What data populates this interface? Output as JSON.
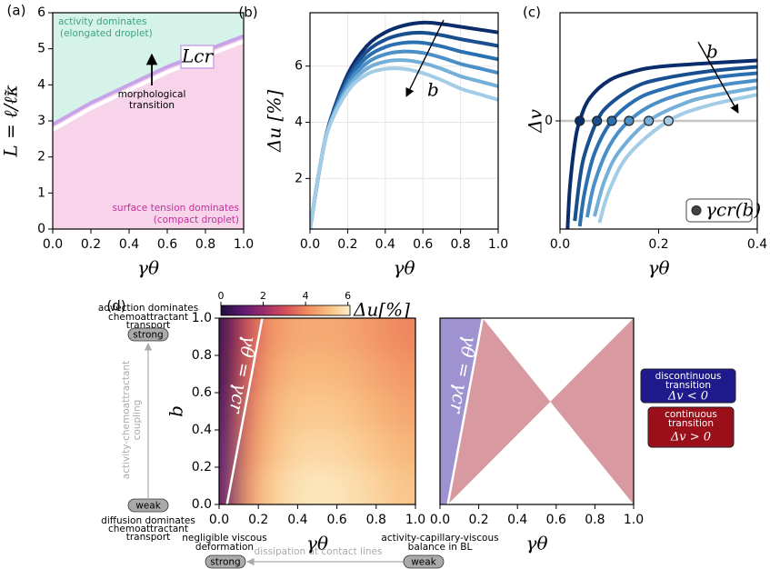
{
  "chart_data": [
    {
      "type": "area",
      "panel": "(a)",
      "xlabel": "γθ",
      "ylabel": "L = ℓ/ℓ̃κ",
      "xlim": [
        0,
        1
      ],
      "ylim": [
        0,
        6
      ],
      "xticks": [
        {
          "value": 0,
          "label": "0.0"
        },
        {
          "value": 0.2,
          "label": "0.2"
        },
        {
          "value": 0.4,
          "label": "0.4"
        },
        {
          "value": 0.6,
          "label": "0.6"
        },
        {
          "value": 0.8,
          "label": "0.8"
        },
        {
          "value": 1,
          "label": "1.0"
        }
      ],
      "yticks": [
        0,
        1,
        2,
        3,
        4,
        5,
        6
      ],
      "x": [
        0,
        0.1,
        0.2,
        0.3,
        0.4,
        0.5,
        0.6,
        0.7,
        0.8,
        0.9,
        1.0
      ],
      "series": [
        {
          "name": "Lcr",
          "color": "#c7a4e8",
          "values": [
            2.9,
            3.2,
            3.5,
            3.75,
            4.0,
            4.25,
            4.5,
            4.7,
            4.95,
            5.15,
            5.35
          ]
        }
      ],
      "fill_above": "#d6f3e9",
      "fill_below": "#f8d4eb",
      "annotations": [
        "activity dominates",
        "(elongated droplet)",
        "morphological",
        "transition",
        "surface tension dominates",
        "(compact droplet)"
      ]
    },
    {
      "type": "line",
      "panel": "(b)",
      "xlabel": "γθ",
      "ylabel": "Δu [%]",
      "xlim": [
        0,
        1
      ],
      "ylim": [
        0.2,
        7.9
      ],
      "grid": true,
      "xticks": [
        {
          "value": 0,
          "label": "0.0"
        },
        {
          "value": 0.2,
          "label": "0.2"
        },
        {
          "value": 0.4,
          "label": "0.4"
        },
        {
          "value": 0.6,
          "label": "0.6"
        },
        {
          "value": 0.8,
          "label": "0.8"
        },
        {
          "value": 1,
          "label": "1.0"
        }
      ],
      "yticks": [
        2,
        4,
        6
      ],
      "x": [
        0,
        0.05,
        0.1,
        0.2,
        0.3,
        0.4,
        0.5,
        0.6,
        0.7,
        0.8,
        0.9,
        1.0
      ],
      "series": [
        {
          "color": "#0b2d6b",
          "values": [
            0.2,
            2.3,
            3.9,
            5.7,
            6.7,
            7.2,
            7.45,
            7.55,
            7.5,
            7.4,
            7.3,
            7.2
          ]
        },
        {
          "color": "#1a4f8f",
          "values": [
            0.2,
            2.3,
            3.88,
            5.58,
            6.5,
            6.94,
            7.14,
            7.19,
            7.1,
            6.96,
            6.84,
            6.72
          ]
        },
        {
          "color": "#2a6fb0",
          "values": [
            0.2,
            2.3,
            3.86,
            5.46,
            6.3,
            6.68,
            6.83,
            6.83,
            6.7,
            6.52,
            6.38,
            6.24
          ]
        },
        {
          "color": "#4a8fc8",
          "values": [
            0.2,
            2.3,
            3.84,
            5.34,
            6.1,
            6.42,
            6.52,
            6.47,
            6.3,
            6.08,
            5.92,
            5.76
          ]
        },
        {
          "color": "#74afd9",
          "values": [
            0.2,
            2.3,
            3.82,
            5.22,
            5.9,
            6.16,
            6.21,
            6.11,
            5.9,
            5.64,
            5.46,
            5.28
          ]
        },
        {
          "color": "#a3cce6",
          "values": [
            0.2,
            2.3,
            3.8,
            5.1,
            5.7,
            5.9,
            5.9,
            5.75,
            5.5,
            5.2,
            5.0,
            4.8
          ]
        }
      ],
      "annotations": [
        "b"
      ]
    },
    {
      "type": "line",
      "panel": "(c)",
      "xlabel": "γθ",
      "ylabel": "Δv",
      "xlim": [
        0,
        0.4
      ],
      "ylim": [
        -1.2,
        1.2
      ],
      "grid": "y",
      "xticks": [
        {
          "value": 0,
          "label": "0.0"
        },
        {
          "value": 0.2,
          "label": "0.2"
        },
        {
          "value": 0.4,
          "label": "0.4"
        }
      ],
      "yticks": [
        0
      ],
      "series": [
        {
          "color": "#0b2d6b",
          "x": [
            0.015,
            0.02,
            0.03,
            0.04,
            0.06,
            0.1,
            0.15,
            0.2,
            0.3,
            0.4
          ],
          "values": [
            -1.24,
            -0.74,
            -0.25,
            0,
            0.25,
            0.45,
            0.55,
            0.6,
            0.64,
            0.67
          ]
        },
        {
          "color": "#1a4f8f",
          "x": [
            0.03,
            0.04,
            0.05,
            0.075,
            0.1,
            0.15,
            0.2,
            0.3,
            0.4
          ],
          "values": [
            -1.11,
            -0.65,
            -0.37,
            0,
            0.18,
            0.37,
            0.46,
            0.55,
            0.6
          ]
        },
        {
          "color": "#2a6fb0",
          "x": [
            0.04,
            0.05,
            0.07,
            0.105,
            0.15,
            0.2,
            0.3,
            0.4
          ],
          "values": [
            -1.17,
            -0.79,
            -0.36,
            0,
            0.22,
            0.34,
            0.47,
            0.53
          ]
        },
        {
          "color": "#4a8fc8",
          "x": [
            0.055,
            0.07,
            0.1,
            0.14,
            0.2,
            0.3,
            0.4
          ],
          "values": [
            -1.07,
            -0.69,
            -0.28,
            0,
            0.21,
            0.37,
            0.45
          ]
        },
        {
          "color": "#74afd9",
          "x": [
            0.07,
            0.09,
            0.12,
            0.18,
            0.25,
            0.3,
            0.4
          ],
          "values": [
            -1.06,
            -0.67,
            -0.34,
            0,
            0.19,
            0.27,
            0.37
          ]
        },
        {
          "color": "#a3cce6",
          "x": [
            0.08,
            0.1,
            0.14,
            0.22,
            0.3,
            0.4
          ],
          "values": [
            -1.13,
            -0.77,
            -0.37,
            0,
            0.17,
            0.29
          ]
        }
      ],
      "markers": {
        "name": "γcr(b)",
        "x": [
          0.04,
          0.075,
          0.105,
          0.14,
          0.18,
          0.22
        ],
        "values": [
          0,
          0,
          0,
          0,
          0,
          0
        ]
      },
      "annotations": [
        "b"
      ]
    },
    {
      "type": "heatmap",
      "panel": "(d)",
      "xlabel": "γθ",
      "ylabel": "b",
      "xlim": [
        0,
        1
      ],
      "ylim": [
        0,
        1
      ],
      "xticks": [
        {
          "value": 0,
          "label": "0.0"
        },
        {
          "value": 0.2,
          "label": "0.2"
        },
        {
          "value": 0.4,
          "label": "0.4"
        },
        {
          "value": 0.6,
          "label": "0.6"
        },
        {
          "value": 0.8,
          "label": "0.8"
        },
        {
          "value": 1,
          "label": "1.0"
        }
      ],
      "yticks": [
        {
          "value": 0,
          "label": "0.0"
        },
        {
          "value": 0.2,
          "label": "0.2"
        },
        {
          "value": 0.4,
          "label": "0.4"
        },
        {
          "value": 0.6,
          "label": "0.6"
        },
        {
          "value": 0.8,
          "label": "0.8"
        },
        {
          "value": 1,
          "label": "1.0"
        }
      ],
      "x": [
        0.05,
        0.15,
        0.25,
        0.35,
        0.45,
        0.55,
        0.65,
        0.75,
        0.85,
        0.95
      ],
      "y": [
        0.1,
        0.3,
        0.5,
        0.7,
        0.9
      ],
      "values": [
        [
          1.2,
          4.3,
          5.3,
          5.7,
          5.9,
          5.9,
          5.8,
          5.6,
          5.4,
          5.2
        ],
        [
          1.0,
          4.0,
          5.0,
          5.4,
          5.6,
          5.6,
          5.5,
          5.3,
          5.1,
          4.9
        ],
        [
          0.8,
          3.7,
          4.8,
          5.2,
          5.3,
          5.3,
          5.2,
          5.0,
          4.8,
          4.6
        ],
        [
          0.6,
          3.3,
          4.5,
          4.9,
          5.0,
          5.0,
          4.9,
          4.7,
          4.5,
          4.3
        ],
        [
          0.5,
          3.0,
          4.2,
          4.6,
          4.7,
          4.7,
          4.6,
          4.4,
          4.2,
          4.0
        ]
      ],
      "clim": [
        0,
        6.1
      ],
      "colorbar_ticks": [
        0,
        2,
        4,
        6
      ],
      "colorbar_label": "Δu[%]",
      "colormap": [
        "#1f0c3b",
        "#5b1a6e",
        "#9b2d6c",
        "#d54d5a",
        "#f08a5e",
        "#f9be80",
        "#fdf0c9"
      ],
      "boundary": {
        "name": "γθ = γcr",
        "color": "#ffffff",
        "x": [
          0.04,
          0.22
        ],
        "values": [
          0,
          1
        ]
      },
      "annotations": [
        "advection dominates",
        "chemoattractant",
        "transport",
        "strong",
        "activity-chemoattractant",
        "coupling",
        "weak",
        "diffusion dominates",
        "chemoattractant",
        "transport",
        "negligible viscous",
        "deformation",
        "strong",
        "dissipation at contact lines",
        "weak",
        "activity-capillary-viscous",
        "balance in BL"
      ]
    },
    {
      "type": "region",
      "xlabel": "γθ",
      "xlim": [
        0,
        1
      ],
      "ylim": [
        0,
        1
      ],
      "xticks": [
        {
          "value": 0,
          "label": "0.0"
        },
        {
          "value": 0.2,
          "label": "0.2"
        },
        {
          "value": 0.4,
          "label": "0.4"
        },
        {
          "value": 0.6,
          "label": "0.6"
        },
        {
          "value": 0.8,
          "label": "0.8"
        },
        {
          "value": 1,
          "label": "1.0"
        }
      ],
      "boundary": {
        "name": "γθ = γcr",
        "color": "#ffffff",
        "x": [
          0.04,
          0.22
        ],
        "values": [
          0,
          1
        ]
      },
      "regions": [
        {
          "lines": [
            "discontinuous",
            "transition",
            "Δv < 0"
          ],
          "color": "#9f92d0",
          "legend_color": "#1f1a8c"
        },
        {
          "lines": [
            "continuous",
            "transition",
            "Δv > 0"
          ],
          "color": "#d89aa0",
          "legend_color": "#9b0f1a"
        }
      ]
    }
  ]
}
